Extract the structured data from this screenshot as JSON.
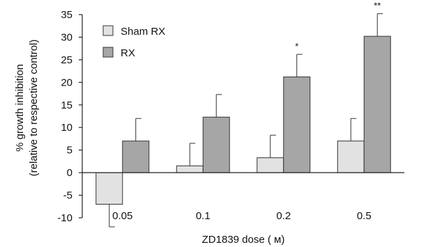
{
  "chart_data": {
    "type": "bar",
    "title": "",
    "xlabel": "ZD1839 dose ( м)",
    "ylabel_lines": [
      "% growth inhibition",
      "(relative to respective control)"
    ],
    "categories": [
      "0.05",
      "0.1",
      "0.2",
      "0.5"
    ],
    "ylim": [
      -10,
      35
    ],
    "yticks": [
      "-10",
      "-5",
      "0",
      "5",
      "10",
      "15",
      "20",
      "25",
      "30",
      "35"
    ],
    "grid": false,
    "legend_position": "top-left",
    "series": [
      {
        "name": "Sham RX",
        "color": "#e2e2e2",
        "values": [
          -7,
          1.5,
          3.3,
          7
        ],
        "error": [
          5,
          5,
          5,
          5
        ]
      },
      {
        "name": "RX",
        "color": "#a6a6a6",
        "values": [
          7,
          12.3,
          21.2,
          30.2
        ],
        "error": [
          5,
          5,
          5,
          5
        ]
      }
    ],
    "annotations": [
      {
        "category": "0.2",
        "series": "RX",
        "text": "*"
      },
      {
        "category": "0.5",
        "series": "RX",
        "text": "**"
      }
    ]
  }
}
